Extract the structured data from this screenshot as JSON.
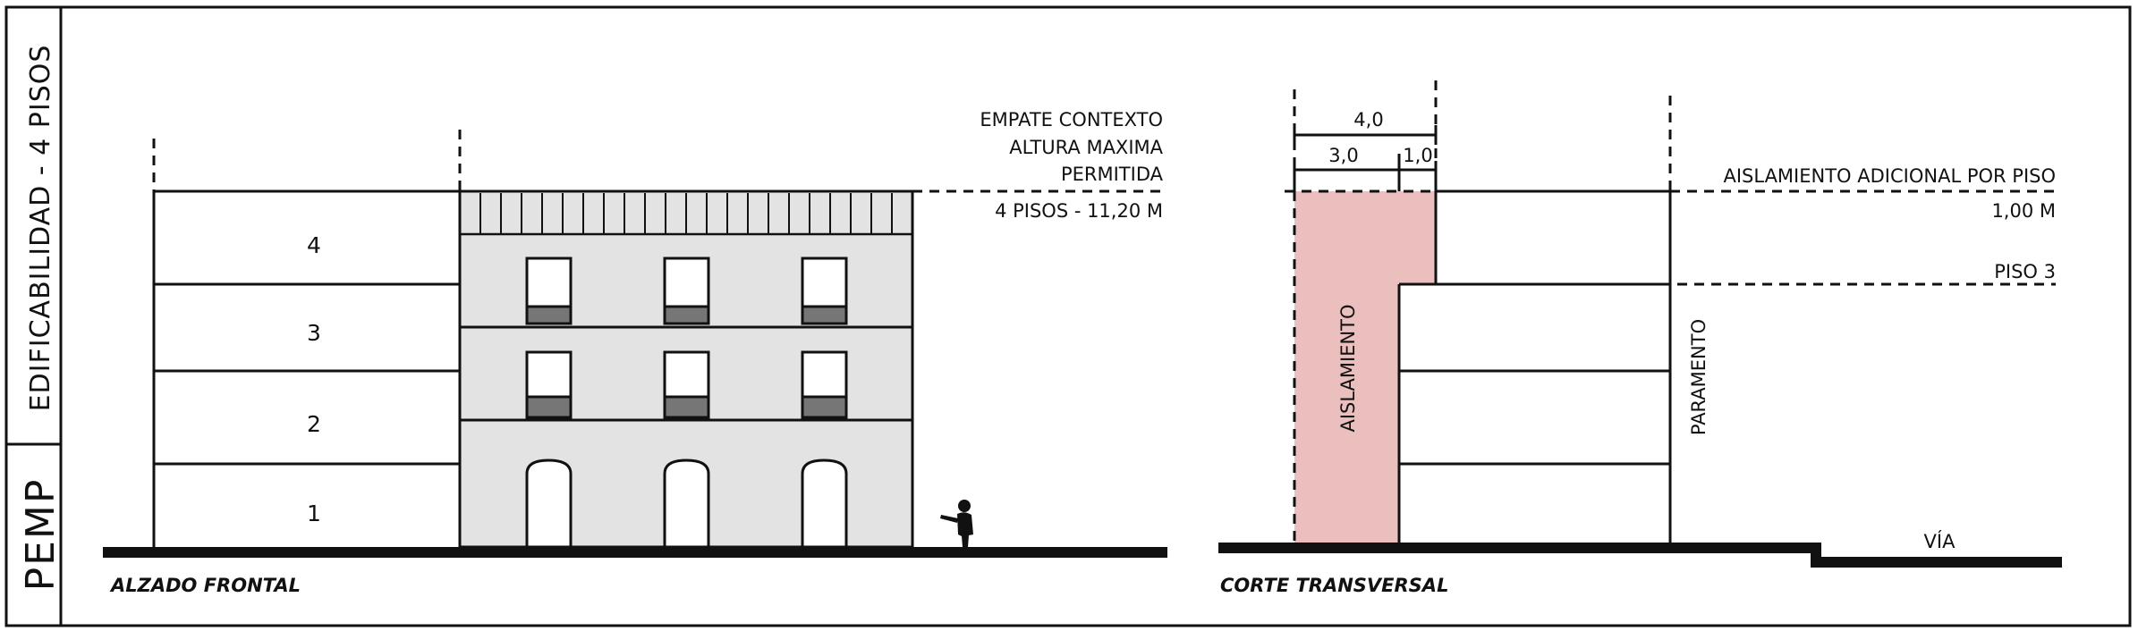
{
  "side_panel": {
    "top_label": "EDIFICABILIDAD - 4 PISOS",
    "bottom_label": "PEMP"
  },
  "alzado": {
    "caption": "ALZADO FRONTAL",
    "floor_labels": [
      "4",
      "3",
      "2",
      "1"
    ],
    "empate_lines": [
      "EMPATE CONTEXTO",
      "ALTURA MAXIMA",
      "PERMITIDA",
      "4 PISOS - 11,20 M"
    ]
  },
  "corte": {
    "caption": "CORTE TRANSVERSAL",
    "dim_top": "4,0",
    "dim_left": "3,0",
    "dim_right": "1,0",
    "aislamiento_label": "AISLAMIENTO",
    "paramento_label": "PARAMENTO",
    "aislamiento_adicional": "AISLAMIENTO ADICIONAL POR PISO",
    "aislamiento_adicional_value": "1,00 M",
    "piso3_label": "PISO 3",
    "via_label": "VÍA"
  },
  "colors": {
    "aislamiento_fill": "#ecbfbf",
    "facade_fill": "#e3e3e3",
    "window_sill": "#767676",
    "line": "#111111"
  }
}
